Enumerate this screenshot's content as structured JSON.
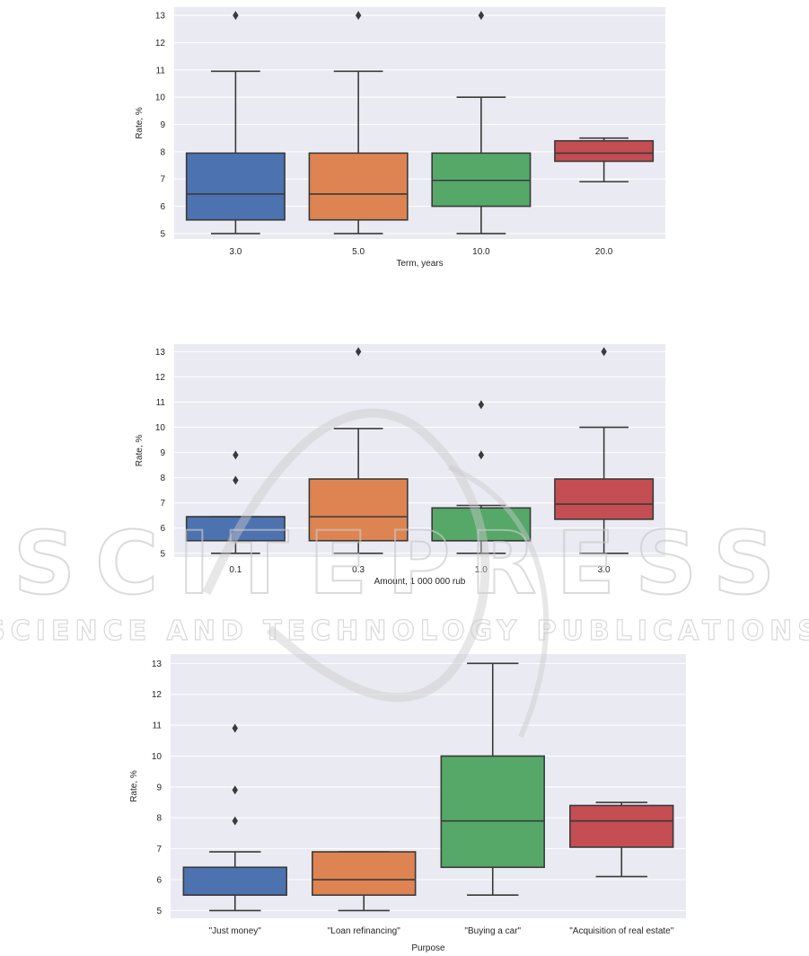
{
  "watermark": {
    "main": "SCITEPRESS",
    "sub": "SCIENCE AND TECHNOLOGY PUBLICATIONS"
  },
  "chart_data": [
    {
      "type": "box",
      "xlabel": "Term, years",
      "ylabel": "Rate, %",
      "categories": [
        "3.0",
        "5.0",
        "10.0",
        "20.0"
      ],
      "ylim": [
        4.8,
        13.3
      ],
      "yticks": [
        5,
        6,
        7,
        8,
        9,
        10,
        11,
        12,
        13
      ],
      "grid": true,
      "boxes": [
        {
          "category": "3.0",
          "color": "#4c72b0",
          "whisker_low": 5.0,
          "q1": 5.5,
          "median": 6.45,
          "q3": 7.95,
          "whisker_high": 10.95,
          "outliers": [
            13.0
          ]
        },
        {
          "category": "5.0",
          "color": "#dd8452",
          "whisker_low": 5.0,
          "q1": 5.5,
          "median": 6.45,
          "q3": 7.95,
          "whisker_high": 10.95,
          "outliers": [
            13.0
          ]
        },
        {
          "category": "10.0",
          "color": "#55a868",
          "whisker_low": 5.0,
          "q1": 6.0,
          "median": 6.95,
          "q3": 7.95,
          "whisker_high": 10.0,
          "outliers": [
            13.0
          ]
        },
        {
          "category": "20.0",
          "color": "#c44e52",
          "whisker_low": 6.9,
          "q1": 7.65,
          "median": 7.95,
          "q3": 8.4,
          "whisker_high": 8.5,
          "outliers": []
        }
      ]
    },
    {
      "type": "box",
      "xlabel": "Amount, 1 000 000 rub",
      "ylabel": "Rate, %",
      "categories": [
        "0.1",
        "0.3",
        "1.0",
        "3.0"
      ],
      "ylim": [
        4.85,
        13.3
      ],
      "yticks": [
        5,
        6,
        7,
        8,
        9,
        10,
        11,
        12,
        13
      ],
      "grid": true,
      "boxes": [
        {
          "category": "0.1",
          "color": "#4c72b0",
          "whisker_low": 5.0,
          "q1": 5.5,
          "median": 6.45,
          "q3": 6.45,
          "whisker_high": 6.45,
          "outliers": [
            7.9,
            8.9
          ]
        },
        {
          "category": "0.3",
          "color": "#dd8452",
          "whisker_low": 5.0,
          "q1": 5.5,
          "median": 6.45,
          "q3": 7.95,
          "whisker_high": 9.95,
          "outliers": [
            13.0
          ]
        },
        {
          "category": "1.0",
          "color": "#55a868",
          "whisker_low": 5.0,
          "q1": 5.5,
          "median": 5.5,
          "q3": 6.8,
          "whisker_high": 6.9,
          "outliers": [
            8.9,
            10.9
          ]
        },
        {
          "category": "3.0",
          "color": "#c44e52",
          "whisker_low": 5.0,
          "q1": 6.35,
          "median": 6.95,
          "q3": 7.95,
          "whisker_high": 10.0,
          "outliers": [
            13.0
          ]
        }
      ]
    },
    {
      "type": "box",
      "xlabel": "Purpose",
      "ylabel": "Rate, %",
      "categories": [
        "\"Just money\"",
        "\"Loan refinancing\"",
        "\"Buying a car\"",
        "\"Acquisition of real estate\""
      ],
      "ylim": [
        4.75,
        13.3
      ],
      "yticks": [
        5,
        6,
        7,
        8,
        9,
        10,
        11,
        12,
        13
      ],
      "grid": true,
      "boxes": [
        {
          "category": "\"Just money\"",
          "color": "#4c72b0",
          "whisker_low": 5.0,
          "q1": 5.5,
          "median": 5.5,
          "q3": 6.4,
          "whisker_high": 6.9,
          "outliers": [
            7.9,
            8.9,
            10.9
          ]
        },
        {
          "category": "\"Loan refinancing\"",
          "color": "#dd8452",
          "whisker_low": 5.0,
          "q1": 5.5,
          "median": 6.0,
          "q3": 6.9,
          "whisker_high": 6.9,
          "outliers": []
        },
        {
          "category": "\"Buying a car\"",
          "color": "#55a868",
          "whisker_low": 5.5,
          "q1": 6.4,
          "median": 7.9,
          "q3": 10.0,
          "whisker_high": 13.0,
          "outliers": []
        },
        {
          "category": "\"Acquisition of real estate\"",
          "color": "#c44e52",
          "whisker_low": 6.1,
          "q1": 7.05,
          "median": 7.9,
          "q3": 8.4,
          "whisker_high": 8.5,
          "outliers": []
        }
      ]
    }
  ]
}
